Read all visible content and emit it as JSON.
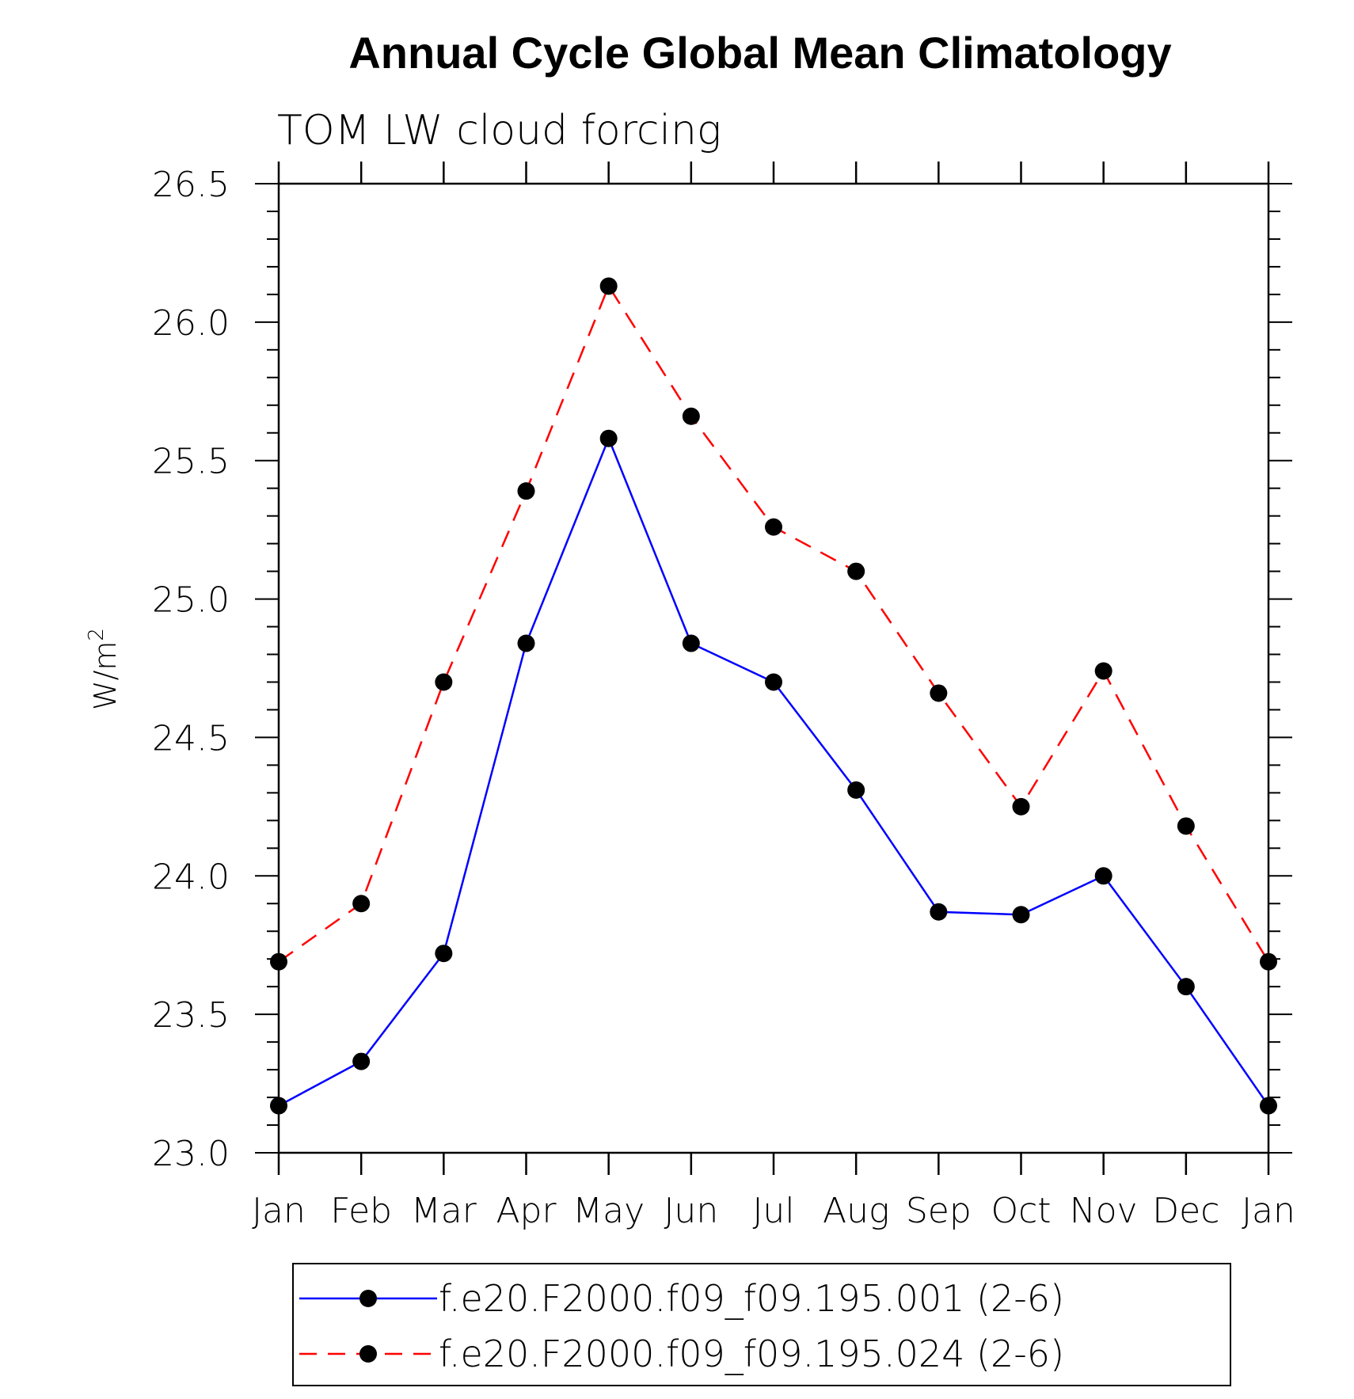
{
  "chart_data": {
    "type": "line",
    "title": "Annual Cycle Global Mean Climatology",
    "subtitle": "TOM LW cloud forcing",
    "xlabel": "",
    "ylabel": "W/m",
    "ylabel_superscript": "2",
    "categories": [
      "Jan",
      "Feb",
      "Mar",
      "Apr",
      "May",
      "Jun",
      "Jul",
      "Aug",
      "Sep",
      "Oct",
      "Nov",
      "Dec",
      "Jan"
    ],
    "ylim": [
      23.0,
      26.5
    ],
    "yticks": [
      "23.0",
      "23.5",
      "24.0",
      "24.5",
      "25.0",
      "25.5",
      "26.0",
      "26.5"
    ],
    "series": [
      {
        "name": "f.e20.F2000.f09_f09.195.001 (2-6)",
        "color": "#0000ff",
        "dash": "solid",
        "marker": "filled-circle",
        "values": [
          23.17,
          23.33,
          23.72,
          24.84,
          25.58,
          24.84,
          24.7,
          24.31,
          23.87,
          23.86,
          24.0,
          23.6,
          23.17
        ]
      },
      {
        "name": "f.e20.F2000.f09_f09.195.024 (2-6)",
        "color": "#ff0000",
        "dash": "dashed",
        "marker": "filled-circle",
        "values": [
          23.69,
          23.9,
          24.7,
          25.39,
          26.13,
          25.66,
          25.26,
          25.1,
          24.66,
          24.25,
          24.74,
          24.18,
          23.69
        ]
      }
    ],
    "legend_position": "bottom"
  }
}
